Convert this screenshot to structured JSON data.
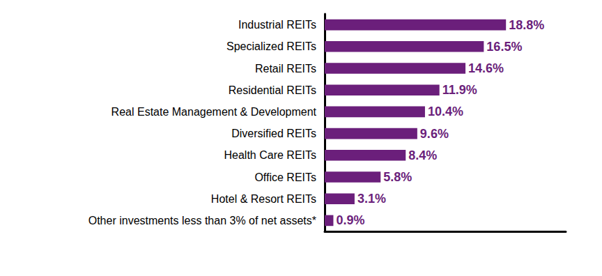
{
  "chart_data": {
    "type": "bar",
    "orientation": "horizontal",
    "categories": [
      "Industrial REITs",
      "Specialized REITs",
      "Retail REITs",
      "Residential REITs",
      "Real Estate Management & Development",
      "Diversified REITs",
      "Health Care REITs",
      "Office REITs",
      "Hotel & Resort REITs",
      "Other investments less than 3% of net assets*"
    ],
    "values": [
      18.8,
      16.5,
      14.6,
      11.9,
      10.4,
      9.6,
      8.4,
      5.8,
      3.1,
      0.9
    ],
    "value_labels": [
      "18.8%",
      "16.5%",
      "14.6%",
      "11.9%",
      "10.4%",
      "9.6%",
      "8.4%",
      "5.8%",
      "3.1%",
      "0.9%"
    ],
    "color": "#6b1f7b",
    "xlim": [
      0,
      25
    ],
    "grid": false,
    "data_labels": true,
    "tick_labels": "y"
  }
}
